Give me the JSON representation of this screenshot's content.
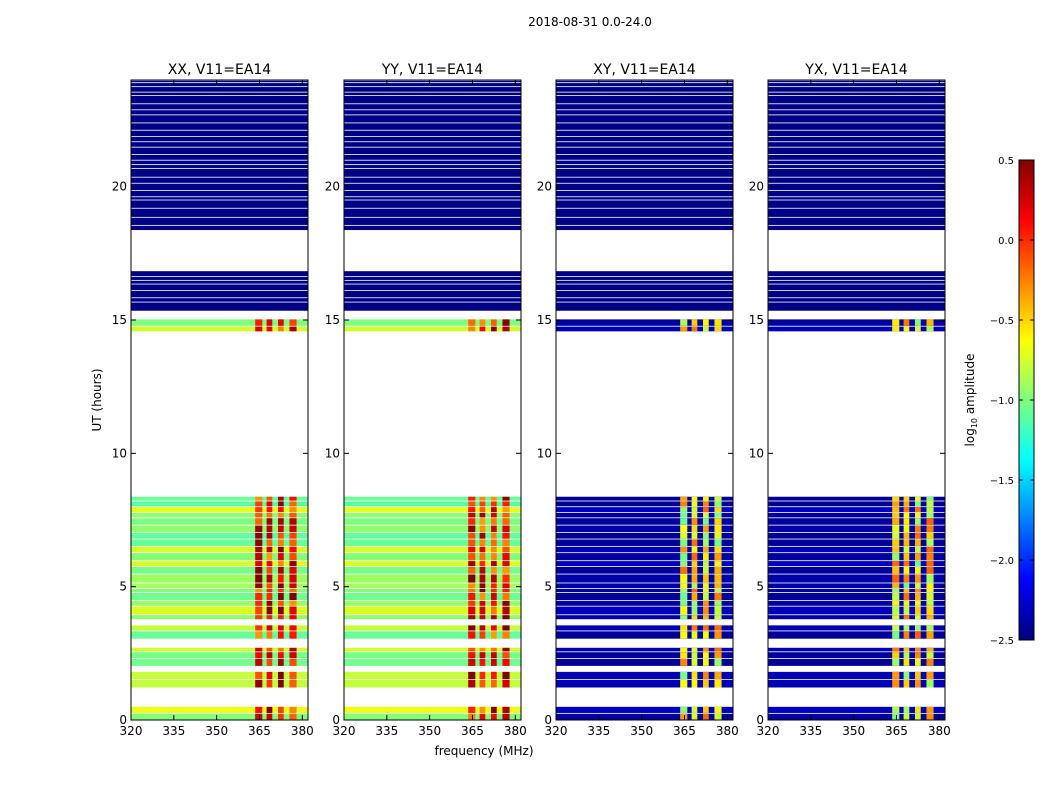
{
  "figure_title": "2018-08-31 0.0-24.0",
  "chart_data": {
    "type": "heatmap",
    "title": "2018-08-31 0.0-24.0",
    "xlabel": "frequency (MHz)",
    "ylabel": "UT (hours)",
    "xlim": [
      320,
      382
    ],
    "ylim": [
      0,
      24
    ],
    "xticks": [
      320,
      335,
      350,
      365,
      380
    ],
    "yticks": [
      0,
      5,
      10,
      15,
      20
    ],
    "colorbar": {
      "label_main": "log",
      "label_sub": "10",
      "label_tail": " amplitude",
      "range": [
        -2.5,
        0.5
      ],
      "ticks": [
        "0.5",
        "0.0",
        "−0.5",
        "−1.0",
        "−1.5",
        "−2.0",
        "−2.5"
      ],
      "tick_values": [
        0.5,
        0.0,
        -0.5,
        -1.0,
        -1.5,
        -2.0,
        -2.5
      ],
      "colormap": "jet",
      "colormap_stops": [
        "#00007f",
        "#0000ff",
        "#007fff",
        "#00ffff",
        "#7fff7f",
        "#ffff00",
        "#ff7f00",
        "#ff0000",
        "#7f0000"
      ]
    },
    "panels": [
      {
        "name": "XX, V11=EA14",
        "polarization": "XX",
        "base_level": -0.9,
        "hot_level": 0.1
      },
      {
        "name": "YY, V11=EA14",
        "polarization": "YY",
        "base_level": -0.9,
        "hot_level": 0.1
      },
      {
        "name": "XY, V11=EA14",
        "polarization": "XY",
        "base_level": -2.45,
        "hot_level": -0.6
      },
      {
        "name": "YX, V11=EA14",
        "polarization": "YX",
        "base_level": -2.45,
        "hot_level": -0.6
      }
    ],
    "observed_ut_ranges": [
      [
        0.0,
        0.4
      ],
      [
        1.3,
        1.7
      ],
      [
        2.1,
        2.8
      ],
      [
        3.1,
        3.6
      ],
      [
        3.8,
        5.9
      ],
      [
        6.0,
        8.5
      ],
      [
        14.6,
        15.2
      ],
      [
        15.3,
        16.8
      ],
      [
        18.4,
        24.0
      ]
    ],
    "quiet_ut_ranges": [
      [
        15.3,
        24.0
      ]
    ],
    "rfi_freq_bands_mhz": [
      [
        363.5,
        366.0
      ],
      [
        367.5,
        369.5
      ],
      [
        371.5,
        373.5
      ],
      [
        375.5,
        378.0
      ]
    ]
  }
}
